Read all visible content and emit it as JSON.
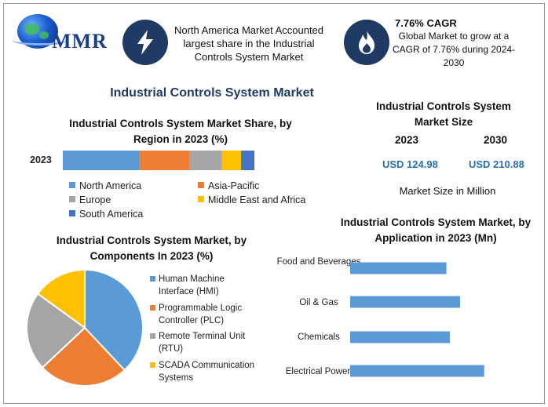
{
  "brand": {
    "name": "MMR"
  },
  "header": {
    "box1_text": "North America Market Accounted largest share in the Industrial Controls System Market",
    "box2_title": "7.76% CAGR",
    "box2_text": "Global Market to grow at a CAGR of 7.76% during 2024-2030",
    "icon1": "lightning-icon",
    "icon2": "flame-icon",
    "icon_color": "#1f3a63"
  },
  "main_title": "Industrial Controls System Market",
  "market_size": {
    "title": "Industrial Controls System Market Size",
    "year1": "2023",
    "year2": "2030",
    "value1": "USD 124.98",
    "value2": "USD 210.88",
    "unit_note": "Market Size in Million"
  },
  "chart_data": [
    {
      "type": "bar",
      "orientation": "horizontal-stacked",
      "title": "Industrial Controls System Market Share, by Region in 2023 (%)",
      "categories": [
        "2023"
      ],
      "series": [
        {
          "name": "North America",
          "values": [
            40
          ],
          "color": "#5b9bd5"
        },
        {
          "name": "Asia-Pacific",
          "values": [
            26
          ],
          "color": "#ed7d31"
        },
        {
          "name": "Europe",
          "values": [
            17
          ],
          "color": "#a5a5a5"
        },
        {
          "name": "Middle East and Africa",
          "values": [
            10
          ],
          "color": "#ffc000"
        },
        {
          "name": "South America",
          "values": [
            7
          ],
          "color": "#4472c4"
        }
      ],
      "legend": "bottom"
    },
    {
      "type": "pie",
      "title": "Industrial Controls System Market, by Components In 2023 (%)",
      "slices": [
        {
          "label": "Human Machine Interface (HMI)",
          "value": 38,
          "color": "#5b9bd5"
        },
        {
          "label": "Programmable Logic Controller (PLC)",
          "value": 25,
          "color": "#ed7d31"
        },
        {
          "label": "Remote Terminal Unit (RTU)",
          "value": 22,
          "color": "#a5a5a5"
        },
        {
          "label": "SCADA Communication Systems",
          "value": 15,
          "color": "#ffc000"
        }
      ],
      "legend": "right"
    },
    {
      "type": "bar",
      "orientation": "horizontal",
      "title": "Industrial Controls System Market, by Application in 2023 (Mn)",
      "categories": [
        "Food and Beverages",
        "Oil & Gas",
        "Chemicals",
        "Electrical Power"
      ],
      "values": [
        28,
        32,
        29,
        39
      ],
      "xlim": [
        0,
        45
      ],
      "color": "#5b9bd5"
    }
  ]
}
